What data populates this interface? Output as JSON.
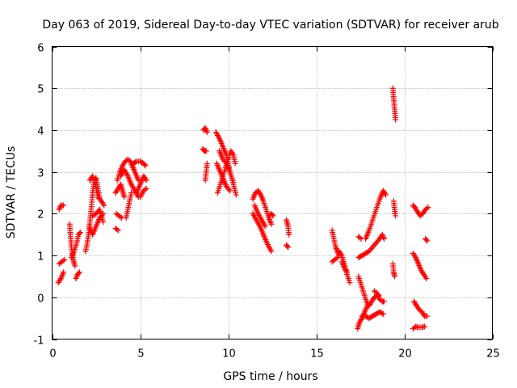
{
  "chart_data": {
    "type": "scatter",
    "title": "Day 063 of 2019, Sidereal Day-to-day VTEC variation (SDTVAR) for receiver arub",
    "xlabel": "GPS time / hours",
    "ylabel": "SDTVAR / TECUs",
    "xlim": [
      0,
      25
    ],
    "ylim": [
      -1,
      6
    ],
    "xticks": [
      "0",
      "5",
      "10",
      "15",
      "20",
      "25"
    ],
    "yticks": [
      "-1",
      "0",
      "1",
      "2",
      "3",
      "4",
      "5",
      "6"
    ],
    "grid": true,
    "marker": "+",
    "color": "#ff0000",
    "arcs": [
      [
        [
          0.4,
          2.1
        ],
        [
          0.5,
          2.2
        ],
        [
          0.65,
          2.2
        ]
      ],
      [
        [
          0.4,
          0.8
        ],
        [
          0.55,
          0.85
        ],
        [
          0.7,
          0.9
        ]
      ],
      [
        [
          0.35,
          0.35
        ],
        [
          0.5,
          0.45
        ],
        [
          0.65,
          0.6
        ]
      ],
      [
        [
          1.0,
          1.75
        ],
        [
          1.05,
          1.45
        ],
        [
          1.1,
          1.2
        ],
        [
          1.2,
          0.9
        ],
        [
          1.3,
          0.75
        ]
      ],
      [
        [
          1.1,
          0.95
        ],
        [
          1.25,
          1.1
        ],
        [
          1.4,
          1.3
        ],
        [
          1.5,
          1.5
        ],
        [
          1.6,
          1.55
        ]
      ],
      [
        [
          1.35,
          0.45
        ],
        [
          1.45,
          0.55
        ],
        [
          1.55,
          0.6
        ]
      ],
      [
        [
          1.9,
          1.1
        ],
        [
          2.0,
          1.3
        ],
        [
          2.1,
          1.6
        ],
        [
          2.2,
          2.0
        ],
        [
          2.3,
          2.5
        ],
        [
          2.4,
          2.8
        ],
        [
          2.5,
          2.85
        ],
        [
          2.6,
          2.6
        ],
        [
          2.7,
          2.4
        ]
      ],
      [
        [
          2.1,
          1.7
        ],
        [
          2.3,
          1.5
        ],
        [
          2.5,
          1.7
        ],
        [
          2.7,
          1.9
        ],
        [
          2.9,
          2.0
        ]
      ],
      [
        [
          2.15,
          2.8
        ],
        [
          2.3,
          2.9
        ],
        [
          2.45,
          2.7
        ],
        [
          2.6,
          2.4
        ],
        [
          2.8,
          2.3
        ],
        [
          2.95,
          2.2
        ]
      ],
      [
        [
          2.3,
          1.95
        ],
        [
          2.5,
          2.0
        ],
        [
          2.7,
          2.1
        ],
        [
          2.9,
          1.8
        ]
      ],
      [
        [
          3.6,
          1.65
        ],
        [
          3.75,
          1.6
        ]
      ],
      [
        [
          3.65,
          2.0
        ],
        [
          3.8,
          1.95
        ],
        [
          3.95,
          1.9
        ]
      ],
      [
        [
          3.6,
          2.5
        ],
        [
          3.75,
          2.6
        ],
        [
          3.9,
          2.7
        ],
        [
          4.0,
          2.55
        ],
        [
          4.1,
          2.4
        ]
      ],
      [
        [
          3.7,
          2.8
        ],
        [
          3.85,
          3.0
        ],
        [
          4.0,
          3.15
        ],
        [
          4.15,
          3.25
        ],
        [
          4.3,
          3.3
        ],
        [
          4.45,
          3.25
        ],
        [
          4.6,
          3.1
        ],
        [
          4.75,
          2.95
        ],
        [
          4.9,
          2.8
        ]
      ],
      [
        [
          3.9,
          2.9
        ],
        [
          4.1,
          3.05
        ],
        [
          4.3,
          2.9
        ],
        [
          4.5,
          2.7
        ],
        [
          4.7,
          2.55
        ],
        [
          4.9,
          2.4
        ]
      ],
      [
        [
          4.2,
          1.9
        ],
        [
          4.3,
          2.1
        ],
        [
          4.4,
          2.3
        ],
        [
          4.5,
          2.5
        ]
      ],
      [
        [
          4.6,
          3.2
        ],
        [
          4.8,
          3.25
        ],
        [
          5.0,
          3.25
        ],
        [
          5.2,
          3.2
        ],
        [
          5.3,
          3.15
        ]
      ],
      [
        [
          4.8,
          2.5
        ],
        [
          5.0,
          2.7
        ],
        [
          5.2,
          2.9
        ],
        [
          5.35,
          2.8
        ]
      ],
      [
        [
          5.0,
          2.4
        ],
        [
          5.2,
          2.55
        ],
        [
          5.35,
          2.6
        ]
      ],
      [
        [
          8.55,
          3.55
        ],
        [
          8.65,
          3.5
        ],
        [
          8.75,
          3.5
        ]
      ],
      [
        [
          8.6,
          4.0
        ],
        [
          8.7,
          4.05
        ],
        [
          8.8,
          3.95
        ]
      ],
      [
        [
          8.7,
          2.8
        ],
        [
          8.75,
          3.0
        ],
        [
          8.8,
          3.2
        ]
      ],
      [
        [
          9.3,
          3.95
        ],
        [
          9.5,
          3.8
        ],
        [
          9.7,
          3.6
        ],
        [
          9.9,
          3.4
        ],
        [
          10.1,
          3.0
        ],
        [
          10.3,
          2.7
        ],
        [
          10.45,
          2.45
        ]
      ],
      [
        [
          9.4,
          2.5
        ],
        [
          9.55,
          2.7
        ],
        [
          9.7,
          2.9
        ],
        [
          9.85,
          3.1
        ],
        [
          10.0,
          3.3
        ],
        [
          10.15,
          3.5
        ],
        [
          10.3,
          3.4
        ],
        [
          10.4,
          3.2
        ]
      ],
      [
        [
          9.35,
          3.2
        ],
        [
          9.5,
          3.05
        ],
        [
          9.7,
          2.85
        ],
        [
          9.9,
          2.65
        ],
        [
          10.1,
          2.55
        ]
      ],
      [
        [
          9.5,
          3.5
        ],
        [
          9.7,
          3.3
        ],
        [
          9.9,
          3.2
        ],
        [
          10.1,
          3.0
        ],
        [
          10.3,
          2.75
        ]
      ],
      [
        [
          11.4,
          2.35
        ],
        [
          11.55,
          2.5
        ],
        [
          11.7,
          2.55
        ],
        [
          11.85,
          2.45
        ],
        [
          12.0,
          2.3
        ],
        [
          12.15,
          2.1
        ],
        [
          12.3,
          1.9
        ],
        [
          12.45,
          1.75
        ]
      ],
      [
        [
          11.4,
          2.0
        ],
        [
          11.6,
          1.85
        ],
        [
          11.8,
          1.7
        ],
        [
          12.0,
          1.5
        ],
        [
          12.2,
          1.3
        ],
        [
          12.45,
          1.1
        ]
      ],
      [
        [
          11.5,
          2.2
        ],
        [
          11.7,
          2.0
        ],
        [
          11.9,
          1.85
        ],
        [
          12.1,
          1.7
        ]
      ],
      [
        [
          12.3,
          1.95
        ],
        [
          12.45,
          2.0
        ],
        [
          12.55,
          1.95
        ]
      ],
      [
        [
          13.3,
          1.85
        ],
        [
          13.4,
          1.7
        ],
        [
          13.45,
          1.5
        ]
      ],
      [
        [
          13.3,
          1.25
        ],
        [
          13.4,
          1.2
        ]
      ],
      [
        [
          15.9,
          1.6
        ],
        [
          16.0,
          1.4
        ],
        [
          16.1,
          1.2
        ],
        [
          16.2,
          1.1
        ],
        [
          16.3,
          1.0
        ]
      ],
      [
        [
          15.9,
          0.85
        ],
        [
          16.05,
          0.9
        ],
        [
          16.2,
          0.95
        ]
      ],
      [
        [
          16.3,
          1.1
        ],
        [
          16.45,
          1.0
        ],
        [
          16.6,
          0.8
        ],
        [
          16.75,
          0.55
        ],
        [
          16.9,
          0.35
        ]
      ],
      [
        [
          16.45,
          0.85
        ],
        [
          16.6,
          0.7
        ],
        [
          16.75,
          0.6
        ]
      ],
      [
        [
          17.35,
          -0.75
        ],
        [
          17.45,
          -0.6
        ],
        [
          17.6,
          -0.5
        ],
        [
          17.75,
          -0.35
        ],
        [
          17.9,
          -0.2
        ]
      ],
      [
        [
          17.4,
          0.5
        ],
        [
          17.55,
          0.3
        ],
        [
          17.7,
          0.1
        ],
        [
          17.85,
          -0.1
        ],
        [
          18.0,
          -0.2
        ],
        [
          18.15,
          -0.1
        ],
        [
          18.3,
          0.0
        ],
        [
          18.45,
          0.05
        ],
        [
          18.55,
          0.05
        ]
      ],
      [
        [
          17.6,
          -0.45
        ],
        [
          17.8,
          -0.45
        ],
        [
          18.0,
          -0.5
        ],
        [
          18.2,
          -0.45
        ],
        [
          18.4,
          -0.4
        ],
        [
          18.6,
          -0.35
        ],
        [
          18.8,
          -0.4
        ]
      ],
      [
        [
          17.4,
          1.45
        ],
        [
          17.55,
          1.4
        ]
      ],
      [
        [
          17.8,
          1.4
        ],
        [
          18.0,
          1.6
        ],
        [
          18.2,
          1.85
        ],
        [
          18.4,
          2.1
        ],
        [
          18.6,
          2.35
        ],
        [
          18.8,
          2.55
        ],
        [
          18.95,
          2.45
        ]
      ],
      [
        [
          17.4,
          0.95
        ],
        [
          17.6,
          1.0
        ],
        [
          17.8,
          1.05
        ],
        [
          18.0,
          1.1
        ],
        [
          18.2,
          1.2
        ],
        [
          18.4,
          1.3
        ],
        [
          18.6,
          1.4
        ],
        [
          18.75,
          1.5
        ],
        [
          18.85,
          1.4
        ]
      ],
      [
        [
          18.3,
          0.15
        ],
        [
          18.45,
          0.1
        ],
        [
          18.6,
          -0.05
        ],
        [
          18.75,
          -0.1
        ],
        [
          18.85,
          -0.1
        ]
      ],
      [
        [
          19.35,
          5.0
        ],
        [
          19.4,
          4.75
        ],
        [
          19.45,
          4.5
        ],
        [
          19.5,
          4.25
        ]
      ],
      [
        [
          19.4,
          2.3
        ],
        [
          19.45,
          2.1
        ],
        [
          19.5,
          1.95
        ]
      ],
      [
        [
          19.35,
          0.8
        ],
        [
          19.4,
          0.6
        ],
        [
          19.45,
          0.5
        ]
      ],
      [
        [
          20.5,
          2.2
        ],
        [
          20.6,
          2.15
        ],
        [
          20.75,
          2.05
        ],
        [
          20.9,
          1.95
        ],
        [
          21.05,
          2.0
        ],
        [
          21.2,
          2.1
        ],
        [
          21.35,
          2.15
        ]
      ],
      [
        [
          20.5,
          1.05
        ],
        [
          20.65,
          0.95
        ],
        [
          20.8,
          0.8
        ],
        [
          20.95,
          0.65
        ],
        [
          21.1,
          0.55
        ],
        [
          21.25,
          0.45
        ]
      ],
      [
        [
          20.55,
          -0.1
        ],
        [
          20.7,
          -0.2
        ],
        [
          20.85,
          -0.3
        ],
        [
          21.0,
          -0.35
        ],
        [
          21.15,
          -0.45
        ],
        [
          21.3,
          -0.45
        ]
      ],
      [
        [
          20.5,
          -0.75
        ],
        [
          20.65,
          -0.7
        ],
        [
          20.8,
          -0.72
        ],
        [
          21.0,
          -0.72
        ],
        [
          21.15,
          -0.7
        ]
      ],
      [
        [
          21.2,
          1.4
        ],
        [
          21.3,
          1.35
        ]
      ]
    ]
  }
}
